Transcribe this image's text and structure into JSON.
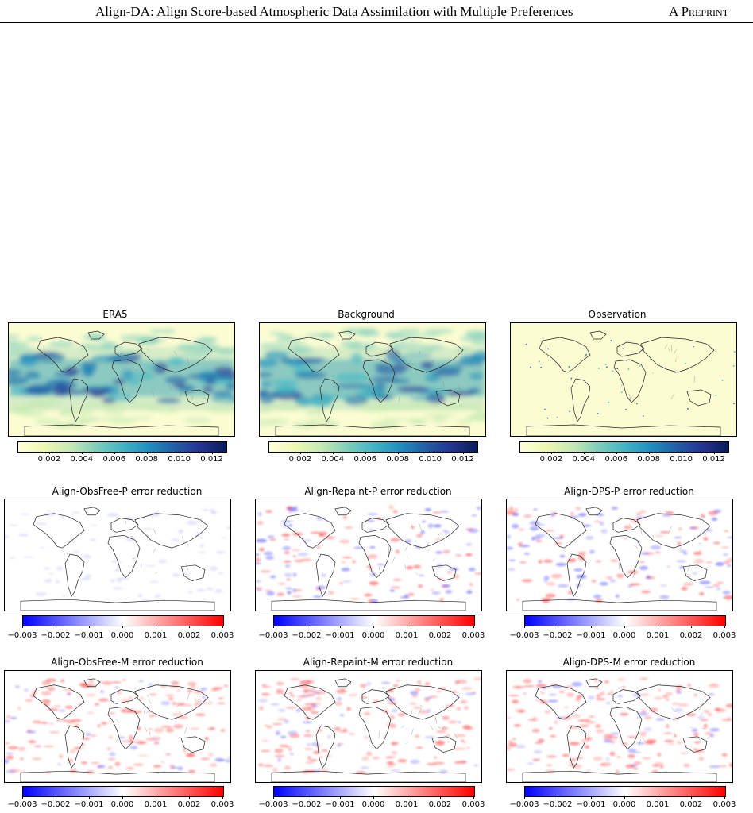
{
  "header": {
    "title": "Align-DA: Align Score-based Atmospheric Data Assimilation with Multiple Preferences",
    "tag": "A Preprint"
  },
  "figure": {
    "row1": [
      {
        "title": "ERA5",
        "type": "field"
      },
      {
        "title": "Background",
        "type": "field"
      },
      {
        "title": "Observation",
        "type": "obs"
      }
    ],
    "row2": [
      {
        "title": "Align-ObsFree-P error reduction",
        "type": "diff-weak"
      },
      {
        "title": "Align-Repaint-P error reduction",
        "type": "diff"
      },
      {
        "title": "Align-DPS-P error reduction",
        "type": "diff"
      }
    ],
    "row3": [
      {
        "title": "Align-ObsFree-M error reduction",
        "type": "diff-red"
      },
      {
        "title": "Align-Repaint-M error reduction",
        "type": "diff-red"
      },
      {
        "title": "Align-DPS-M error reduction",
        "type": "diff-red"
      }
    ],
    "colorbar_field": {
      "colormap": "YlGnBu",
      "ticks": [
        "0.002",
        "0.004",
        "0.006",
        "0.008",
        "0.010",
        "0.012"
      ],
      "colors": [
        "#ffffd9",
        "#edf8b1",
        "#c7e9b4",
        "#7fcdbb",
        "#41b6c4",
        "#1d91c0",
        "#225ea8",
        "#253494",
        "#081d58"
      ]
    },
    "colorbar_diff": {
      "colormap": "bwr",
      "ticks": [
        "−0.003",
        "−0.002",
        "−0.001",
        "0.000",
        "0.001",
        "0.002",
        "0.003"
      ],
      "colors": [
        "#0000ff",
        "#ffffff",
        "#ff0000"
      ]
    }
  }
}
